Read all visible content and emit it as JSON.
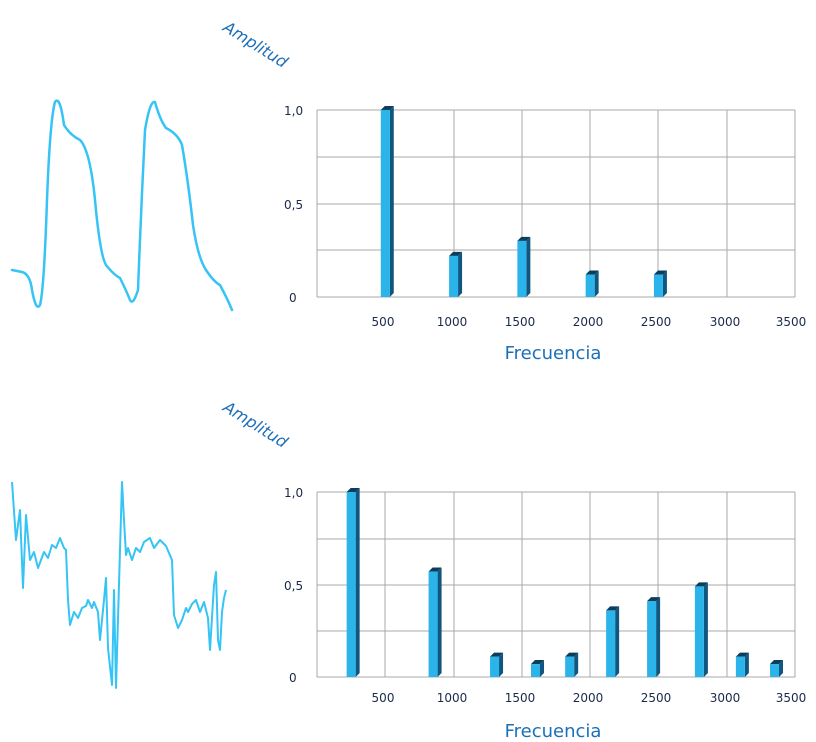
{
  "colors": {
    "bar_front": "#2ab4ea",
    "bar_side": "#10567e",
    "bar_top": "#0c3e5c",
    "wave": "#36c4f5",
    "grid": "#a9a9a9",
    "axis_title": "#1c6fb8"
  },
  "chart_data": [
    {
      "type": "bar",
      "ylabel": "Amplitud",
      "xlabel": "Frecuencia",
      "x_ticks": [
        "500",
        "1000",
        "1500",
        "2000",
        "2500",
        "3000",
        "3500"
      ],
      "y_ticks": [
        "0",
        "0,5",
        "1,0"
      ],
      "ylim": [
        0,
        1.0
      ],
      "xlim": [
        0,
        3500
      ],
      "bars": [
        {
          "x": 500,
          "value": 1.0
        },
        {
          "x": 1000,
          "value": 0.22
        },
        {
          "x": 1500,
          "value": 0.3
        },
        {
          "x": 2000,
          "value": 0.12
        },
        {
          "x": 2500,
          "value": 0.12
        }
      ]
    },
    {
      "type": "bar",
      "ylabel": "Amplitud",
      "xlabel": "Frecuencia",
      "x_ticks": [
        "500",
        "1000",
        "1500",
        "2000",
        "2500",
        "3000",
        "3500"
      ],
      "y_ticks": [
        "0",
        "0,5",
        "1,0"
      ],
      "ylim": [
        0,
        1.0
      ],
      "xlim": [
        0,
        3500
      ],
      "bars": [
        {
          "x": 250,
          "value": 1.0
        },
        {
          "x": 850,
          "value": 0.57
        },
        {
          "x": 1300,
          "value": 0.11
        },
        {
          "x": 1600,
          "value": 0.07
        },
        {
          "x": 1850,
          "value": 0.11
        },
        {
          "x": 2150,
          "value": 0.36
        },
        {
          "x": 2450,
          "value": 0.41
        },
        {
          "x": 2800,
          "value": 0.49
        },
        {
          "x": 3100,
          "value": 0.11
        },
        {
          "x": 3350,
          "value": 0.07
        }
      ]
    }
  ]
}
